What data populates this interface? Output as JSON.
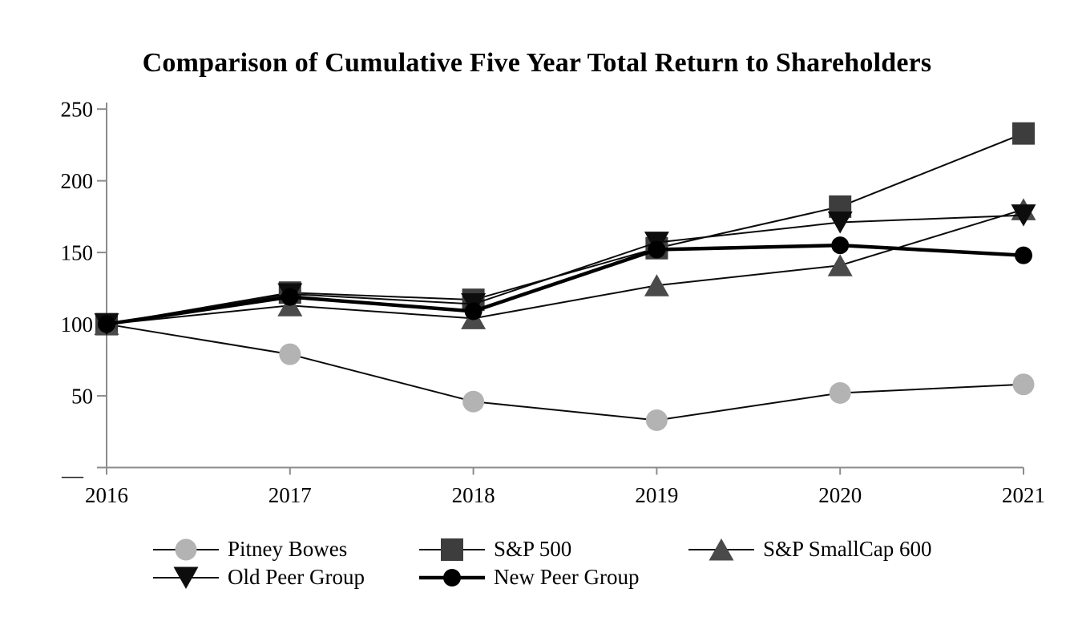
{
  "page": {
    "background_color": "#ffffff",
    "axis_color": "#8c8c8c",
    "text_color": "#000000"
  },
  "chart_data": {
    "type": "line",
    "title": "Comparison of Cumulative Five Year Total Return to Shareholders",
    "xlabel": "",
    "ylabel": "",
    "categories": [
      "2016",
      "2017",
      "2018",
      "2019",
      "2020",
      "2021"
    ],
    "y_ticks": [
      250,
      200,
      150,
      100,
      50,
      0
    ],
    "y_zero_tick_label": "—",
    "ylim": [
      0,
      250
    ],
    "grid": false,
    "legend_position": "bottom",
    "series": [
      {
        "name": "Pitney Bowes",
        "marker": "circle",
        "color": "#b3b3b3",
        "line_color": "#0a0a0a",
        "line_width": 2,
        "values": [
          100,
          79,
          46,
          33,
          52,
          58
        ]
      },
      {
        "name": "S&P 500",
        "marker": "square",
        "color": "#3d3d3d",
        "line_color": "#0a0a0a",
        "line_width": 2,
        "values": [
          100,
          122,
          117,
          153,
          182,
          233
        ]
      },
      {
        "name": "S&P SmallCap 600",
        "marker": "triangle-up",
        "color": "#4a4a4a",
        "line_color": "#0a0a0a",
        "line_width": 2,
        "values": [
          100,
          113,
          104,
          127,
          141,
          180
        ]
      },
      {
        "name": "Old Peer Group",
        "marker": "triangle-down",
        "color": "#0d0d0d",
        "line_color": "#0a0a0a",
        "line_width": 2,
        "values": [
          100,
          121,
          114,
          157,
          171,
          176
        ]
      },
      {
        "name": "New Peer Group",
        "marker": "circle",
        "color": "#000000",
        "line_color": "#000000",
        "line_width": 4.5,
        "values": [
          100,
          119,
          109,
          152,
          155,
          148
        ]
      }
    ]
  }
}
